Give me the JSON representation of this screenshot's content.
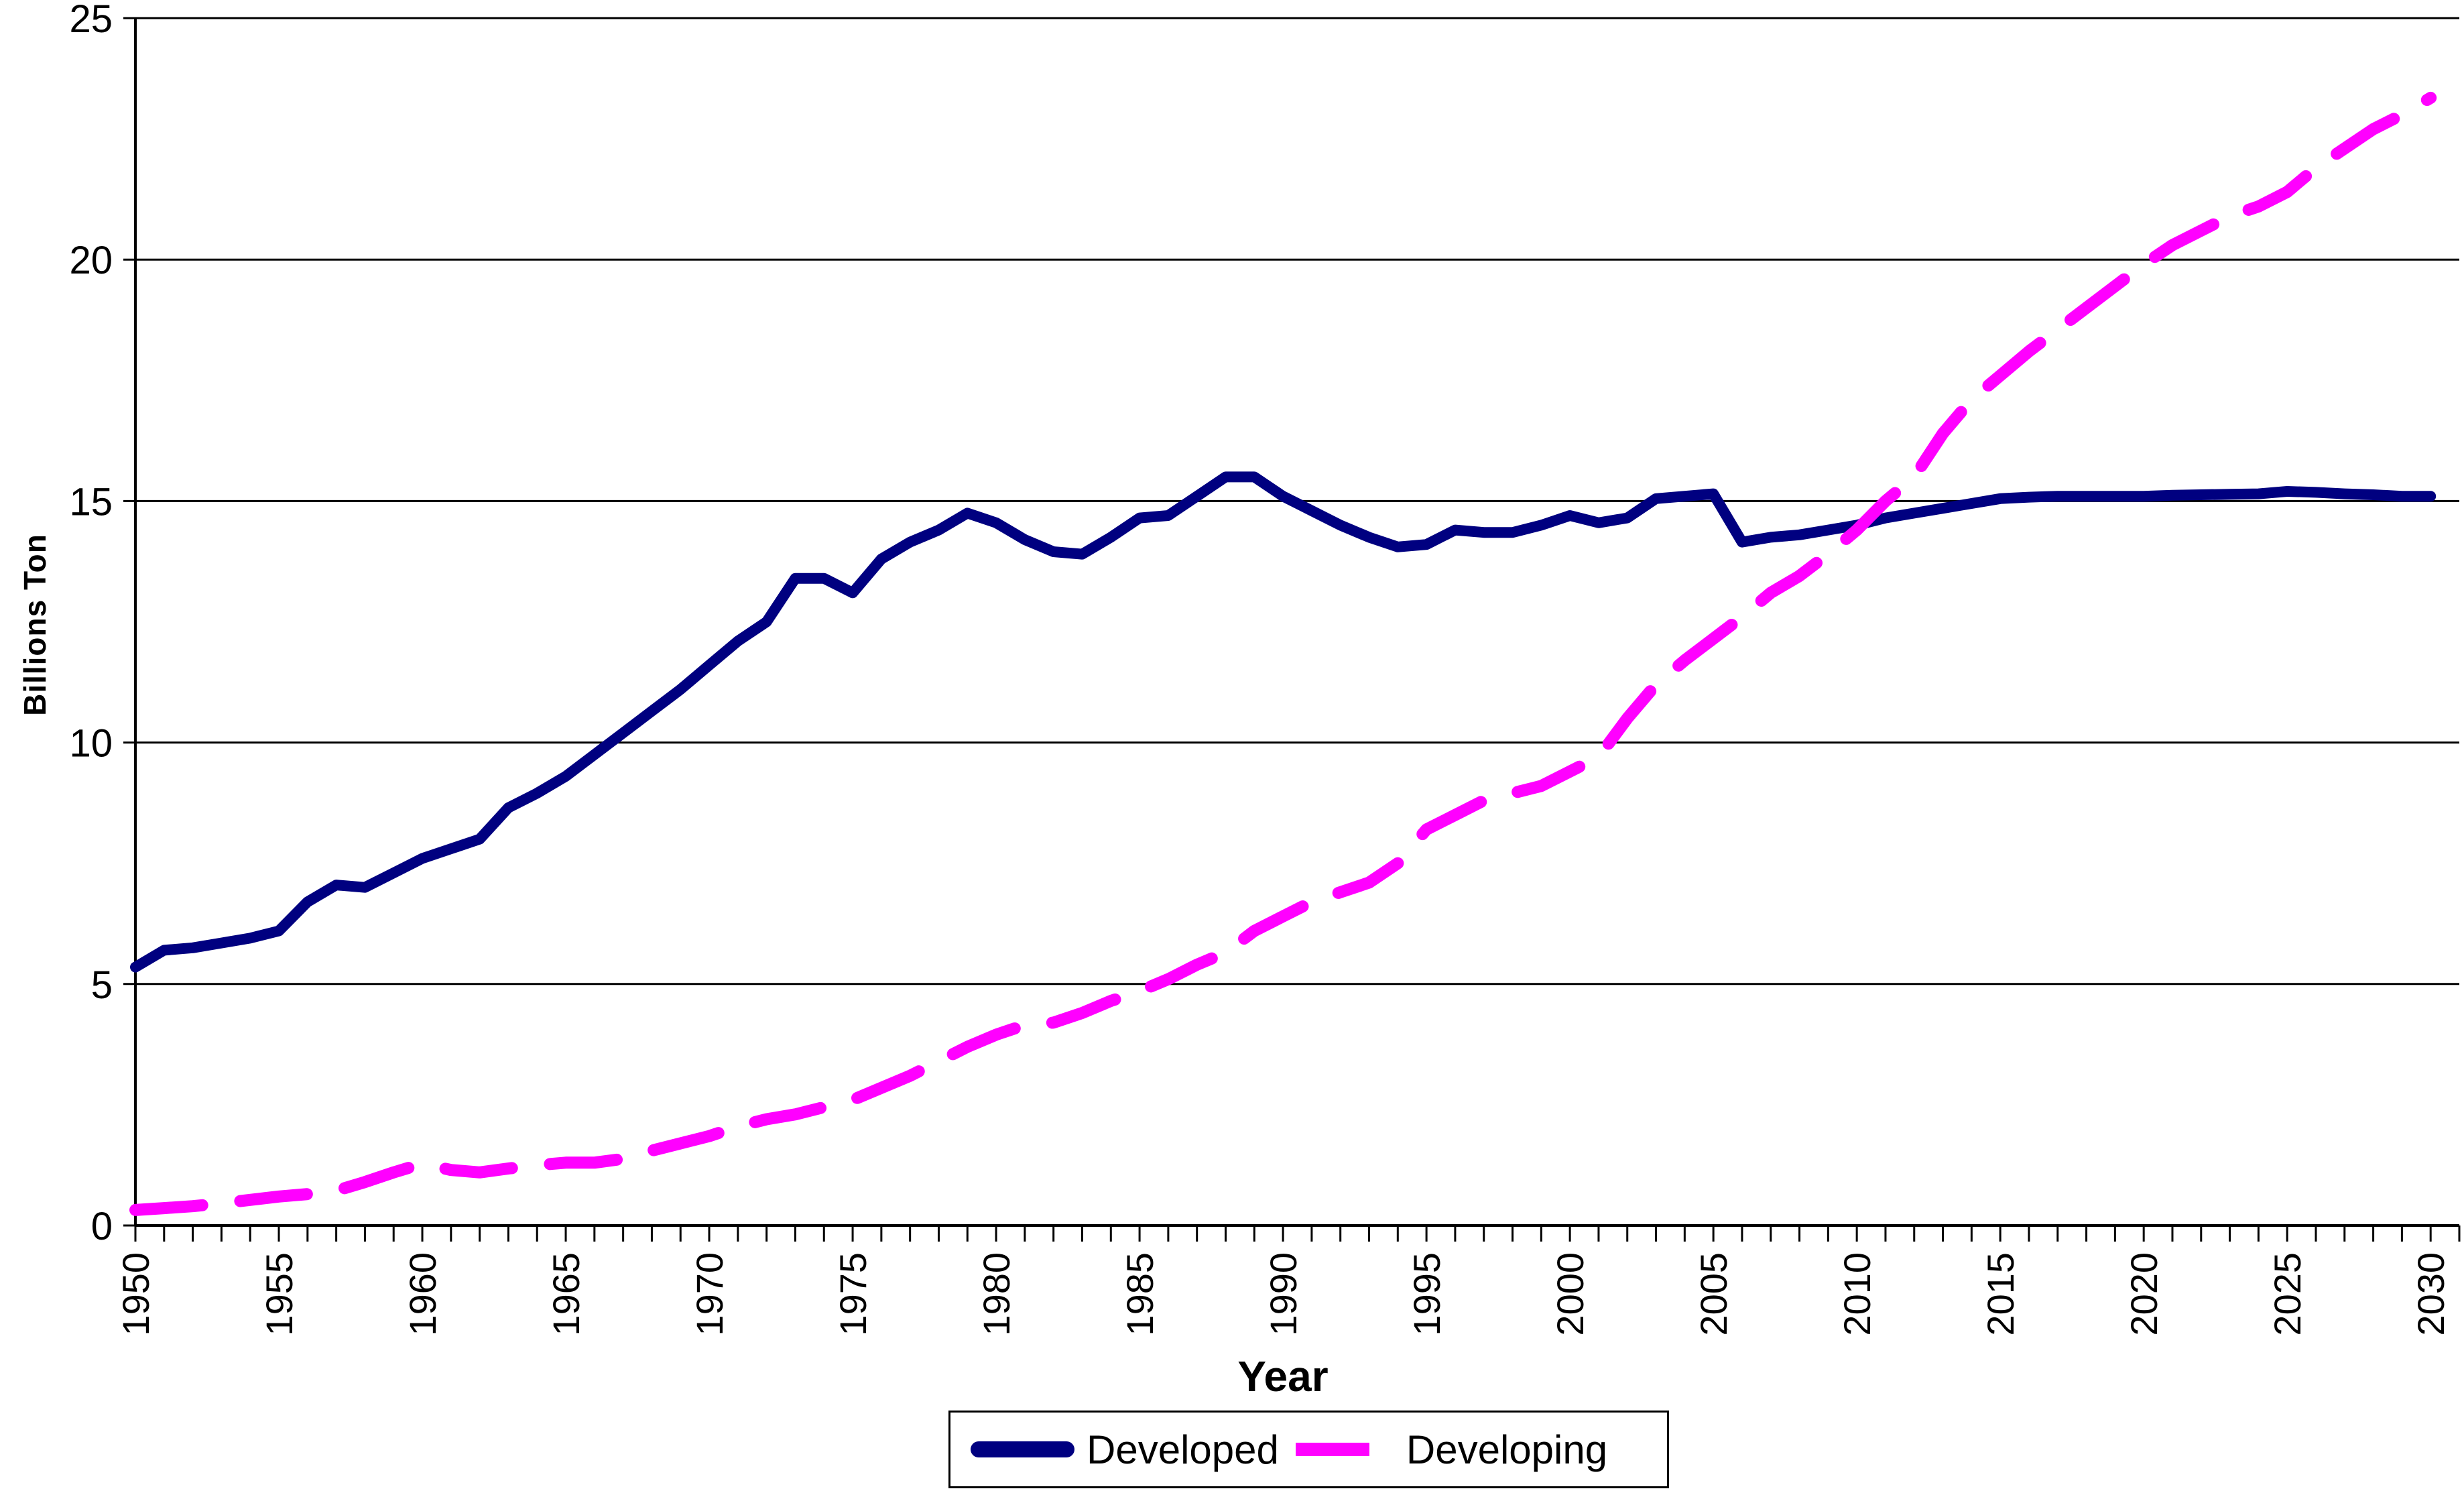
{
  "figure": {
    "background": "#FFFFFF",
    "text_color": "#000000"
  },
  "axes": {
    "ylabel": "Billions Ton",
    "xlabel": "Year",
    "y_tick_labels": [
      "0",
      "5",
      "10",
      "15",
      "20",
      "25"
    ],
    "x_tick_labels": [
      "1950",
      "1955",
      "1960",
      "1965",
      "1970",
      "1975",
      "1980",
      "1985",
      "1990",
      "1995",
      "2000",
      "2005",
      "2010",
      "2015",
      "2020",
      "2025",
      "2030"
    ]
  },
  "legend": {
    "items": [
      {
        "label": "Developed",
        "color": "#000080",
        "style": "solid"
      },
      {
        "label": "Developing",
        "color": "#FF00FF",
        "style": "dashed"
      }
    ]
  },
  "chart_data": {
    "type": "line",
    "title": "",
    "xlabel": "Year",
    "ylabel": "Billions Ton",
    "ylim": [
      0,
      25
    ],
    "y_ticks": [
      0,
      5,
      10,
      15,
      20,
      25
    ],
    "x_range": [
      1950,
      2031
    ],
    "x_label_years": [
      1950,
      1955,
      1960,
      1965,
      1970,
      1975,
      1980,
      1985,
      1990,
      1995,
      2000,
      2005,
      2010,
      2015,
      2020,
      2025,
      2030
    ],
    "grid": "horizontal",
    "legend_position": "bottom",
    "x": [
      1950,
      1951,
      1952,
      1953,
      1954,
      1955,
      1956,
      1957,
      1958,
      1959,
      1960,
      1961,
      1962,
      1963,
      1964,
      1965,
      1966,
      1967,
      1968,
      1969,
      1970,
      1971,
      1972,
      1973,
      1974,
      1975,
      1976,
      1977,
      1978,
      1979,
      1980,
      1981,
      1982,
      1983,
      1984,
      1985,
      1986,
      1987,
      1988,
      1989,
      1990,
      1991,
      1992,
      1993,
      1994,
      1995,
      1996,
      1997,
      1998,
      1999,
      2000,
      2001,
      2002,
      2003,
      2004,
      2005,
      2006,
      2007,
      2008,
      2009,
      2010,
      2011,
      2012,
      2013,
      2014,
      2015,
      2016,
      2017,
      2018,
      2019,
      2020,
      2021,
      2022,
      2023,
      2024,
      2025,
      2026,
      2027,
      2028,
      2029,
      2030
    ],
    "series": [
      {
        "name": "Developed",
        "color": "#000080",
        "style": "solid",
        "values": [
          5.35,
          5.7,
          5.75,
          5.85,
          5.95,
          6.1,
          6.7,
          7.05,
          7.0,
          7.3,
          7.6,
          7.8,
          8.0,
          8.65,
          8.95,
          9.3,
          9.75,
          10.2,
          10.65,
          11.1,
          11.6,
          12.1,
          12.5,
          13.4,
          13.4,
          13.1,
          13.8,
          14.15,
          14.4,
          14.75,
          14.55,
          14.2,
          13.95,
          13.9,
          14.25,
          14.65,
          14.7,
          15.1,
          15.5,
          15.5,
          15.1,
          14.8,
          14.5,
          14.25,
          14.05,
          14.1,
          14.4,
          14.35,
          14.35,
          14.5,
          14.7,
          14.55,
          14.65,
          15.05,
          15.1,
          15.15,
          14.15,
          14.25,
          14.3,
          14.4,
          14.5,
          14.65,
          14.75,
          14.85,
          14.95,
          15.05,
          15.08,
          15.1,
          15.1,
          15.1,
          15.1,
          15.12,
          15.13,
          15.14,
          15.15,
          15.2,
          15.18,
          15.15,
          15.13,
          15.1,
          15.1
        ]
      },
      {
        "name": "Developing",
        "color": "#FF00FF",
        "style": "dashed",
        "values": [
          0.32,
          0.36,
          0.4,
          0.46,
          0.53,
          0.6,
          0.65,
          0.72,
          0.9,
          1.1,
          1.28,
          1.15,
          1.1,
          1.18,
          1.25,
          1.3,
          1.3,
          1.38,
          1.55,
          1.7,
          1.85,
          2.05,
          2.2,
          2.3,
          2.45,
          2.6,
          2.85,
          3.1,
          3.4,
          3.7,
          3.95,
          4.15,
          4.2,
          4.4,
          4.65,
          4.85,
          5.1,
          5.4,
          5.65,
          6.1,
          6.4,
          6.7,
          6.9,
          7.1,
          7.5,
          8.2,
          8.5,
          8.8,
          8.95,
          9.1,
          9.4,
          9.7,
          10.5,
          11.2,
          11.7,
          12.15,
          12.6,
          13.1,
          13.45,
          13.9,
          14.4,
          15.0,
          15.5,
          16.4,
          17.1,
          17.6,
          18.1,
          18.55,
          19.0,
          19.45,
          19.9,
          20.3,
          20.6,
          20.9,
          21.1,
          21.4,
          21.9,
          22.3,
          22.7,
          23.0,
          23.35
        ]
      }
    ]
  }
}
